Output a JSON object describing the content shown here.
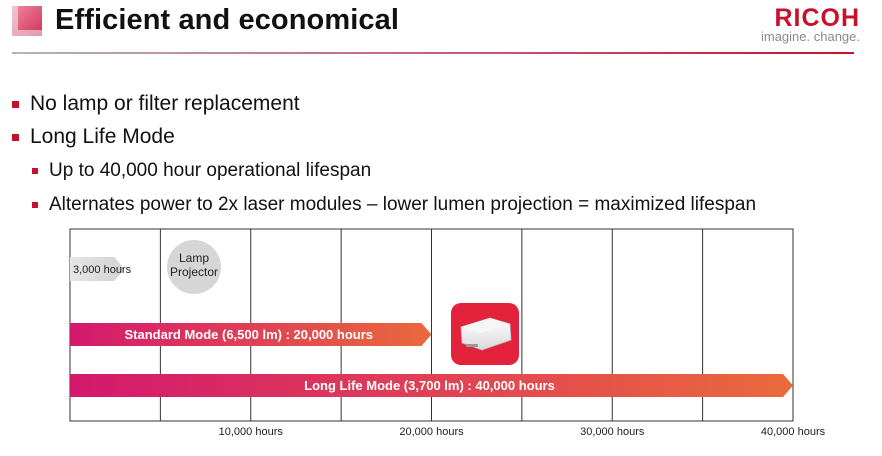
{
  "header": {
    "title": "Efficient and economical",
    "logo_name": "RICOH",
    "logo_tagline": "imagine. change.",
    "accent_color": "#c8102e"
  },
  "bullets": [
    {
      "level": 1,
      "text": "No lamp or filter replacement"
    },
    {
      "level": 1,
      "text": "Long Life Mode"
    },
    {
      "level": 2,
      "text": "Up to 40,000 hour operational lifespan"
    },
    {
      "level": 2,
      "text": "Alternates power to 2x laser modules – lower lumen projection = maximized lifespan"
    }
  ],
  "chart_data": {
    "type": "bar",
    "x_unit": "hours",
    "xlim": [
      0,
      40000
    ],
    "x_ticks": [
      {
        "value": 10000,
        "label": "10,000 hours"
      },
      {
        "value": 20000,
        "label": "20,000 hours"
      },
      {
        "value": 30000,
        "label": "30,000 hours"
      },
      {
        "value": 40000,
        "label": "40,000 hours"
      }
    ],
    "grid": true,
    "bars": [
      {
        "label": "3,000 hours",
        "value": 3000,
        "color_start": "#e4e4e4",
        "color_end": "#d0d0d0"
      },
      {
        "label": "Standard Mode (6,500 lm) : 20,000 hours",
        "value": 20000,
        "color_start": "#d4186e",
        "color_end": "#ea6a3c"
      },
      {
        "label": "Long Life Mode  (3,700 lm) : 40,000 hours",
        "value": 40000,
        "color_start": "#d4186e",
        "color_end": "#ea6a3c"
      }
    ],
    "annotations": [
      {
        "text_lines": [
          "Lamp",
          "Projector"
        ],
        "near_value": 3000
      }
    ]
  }
}
